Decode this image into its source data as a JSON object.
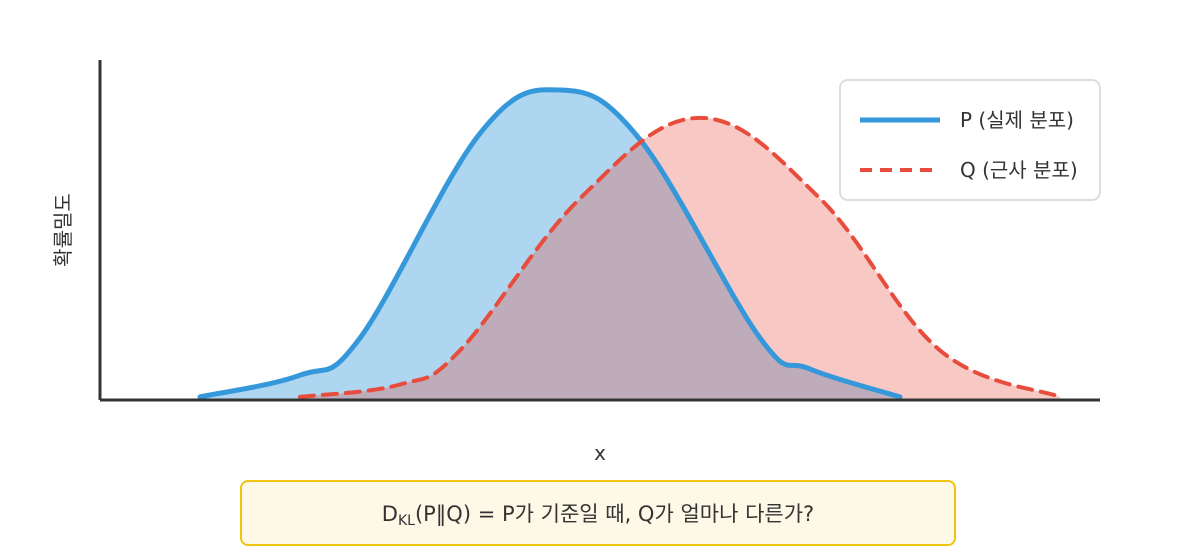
{
  "chart_data": {
    "type": "area",
    "ylabel": "확률밀도",
    "xlabel": "x",
    "grid": false,
    "legend_position": "top-right",
    "xlim": [
      0,
      10
    ],
    "ylim": [
      0,
      1.0
    ],
    "series": [
      {
        "name": "P (실제 분포)",
        "color": "#3498db",
        "line_style": "solid",
        "x": [
          1,
          2,
          2.6,
          3.8,
          4.6,
          5.4,
          6.6,
          7.1,
          8
        ],
        "y": [
          0.01,
          0.08,
          0.2,
          0.86,
          1.0,
          0.84,
          0.2,
          0.1,
          0.01
        ]
      },
      {
        "name": "Q (근사 분포)",
        "color": "#e74c3c",
        "line_style": "dashed",
        "x": [
          2,
          3,
          3.6,
          4.8,
          6.0,
          7.2,
          8.4,
          9.6
        ],
        "y": [
          0.01,
          0.05,
          0.16,
          0.65,
          0.91,
          0.65,
          0.16,
          0.01
        ]
      }
    ]
  },
  "formula": {
    "d": "D",
    "sub": "KL",
    "rest": "(P‖Q) = P가 기준일 때, Q가 얼마나 다른가?"
  }
}
